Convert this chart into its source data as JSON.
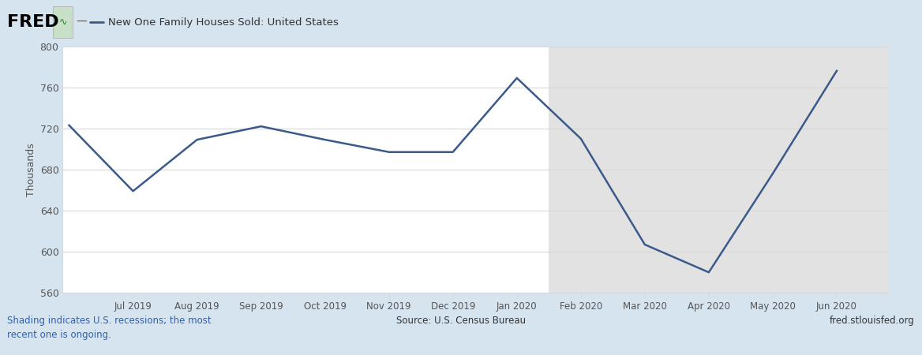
{
  "title": "New One Family Houses Sold: United States",
  "ylabel": "Thousands",
  "background_outer": "#d6e4f0",
  "background_plot": "#ffffff",
  "background_recession": "#e2e2e2",
  "line_color": "#3a5a8a",
  "line_width": 1.8,
  "x_labels": [
    "Jul 2019",
    "Aug 2019",
    "Sep 2019",
    "Oct 2019",
    "Nov 2019",
    "Dec 2019",
    "Jan 2020",
    "Feb 2020",
    "Mar 2020",
    "Apr 2020",
    "May 2020",
    "Jun 2020"
  ],
  "x_tick_positions": [
    1,
    2,
    3,
    4,
    5,
    6,
    7,
    8,
    9,
    10,
    11,
    12
  ],
  "x_values": [
    0,
    1,
    2,
    3,
    4,
    5,
    6,
    7,
    8,
    9,
    10,
    11,
    12
  ],
  "y_data": [
    723,
    659,
    709,
    722,
    709,
    697,
    697,
    769,
    710,
    607,
    580,
    676,
    776
  ],
  "ylim": [
    560,
    800
  ],
  "yticks": [
    560,
    600,
    640,
    680,
    720,
    760,
    800
  ],
  "recession_start_x": 7.5,
  "recession_end_x": 13.0,
  "xlim_left": -0.1,
  "xlim_right": 12.8,
  "source_text": "Source: U.S. Census Bureau",
  "fred_url": "fred.stlouisfed.org",
  "shading_text": "Shading indicates U.S. recessions; the most\nrecent one is ongoing.",
  "grid_color": "#d8d8d8",
  "tick_color": "#555555"
}
